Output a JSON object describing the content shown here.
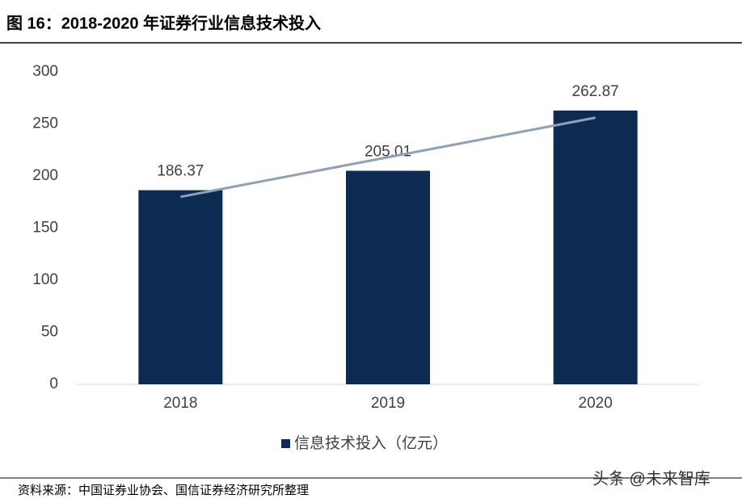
{
  "chart_data": {
    "type": "bar",
    "title": "图 16：2018-2020 年证券行业信息技术投入",
    "categories": [
      "2018",
      "2019",
      "2020"
    ],
    "series": [
      {
        "name": "信息技术投入（亿元）",
        "color": "#0d2a52",
        "values": [
          186.37,
          205.01,
          262.87
        ]
      }
    ],
    "trendline": {
      "color": "#8fa1b4",
      "values": [
        180,
        218,
        256
      ]
    },
    "ylim": [
      0,
      300
    ],
    "yticks": [
      0,
      50,
      100,
      150,
      200,
      250,
      300
    ],
    "grid": false,
    "legend": "bottom",
    "source": "资料来源：中国证券业协会、国信证券经济研究所整理",
    "watermark": "头条 @未来智库"
  }
}
